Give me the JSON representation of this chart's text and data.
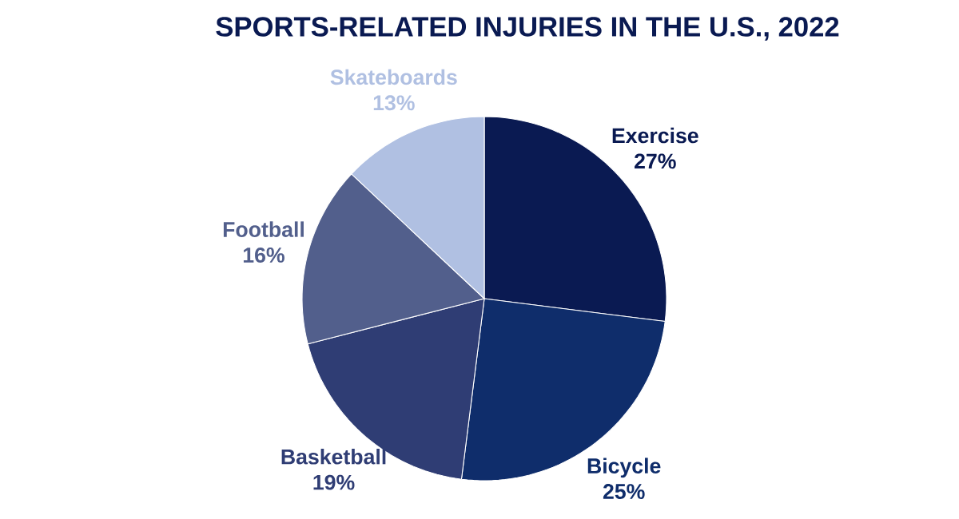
{
  "chart_data": {
    "type": "pie",
    "title": "SPORTS-RELATED INJURIES IN THE U.S., 2022",
    "categories": [
      "Exercise",
      "Bicycle",
      "Basketball",
      "Football",
      "Skateboards"
    ],
    "values": [
      27,
      25,
      19,
      16,
      13
    ],
    "value_labels": [
      "27%",
      "25%",
      "19%",
      "16%",
      "13%"
    ],
    "colors": [
      "#0a1a52",
      "#0f2d6b",
      "#2f3d74",
      "#525f8c",
      "#b0c0e2"
    ]
  }
}
